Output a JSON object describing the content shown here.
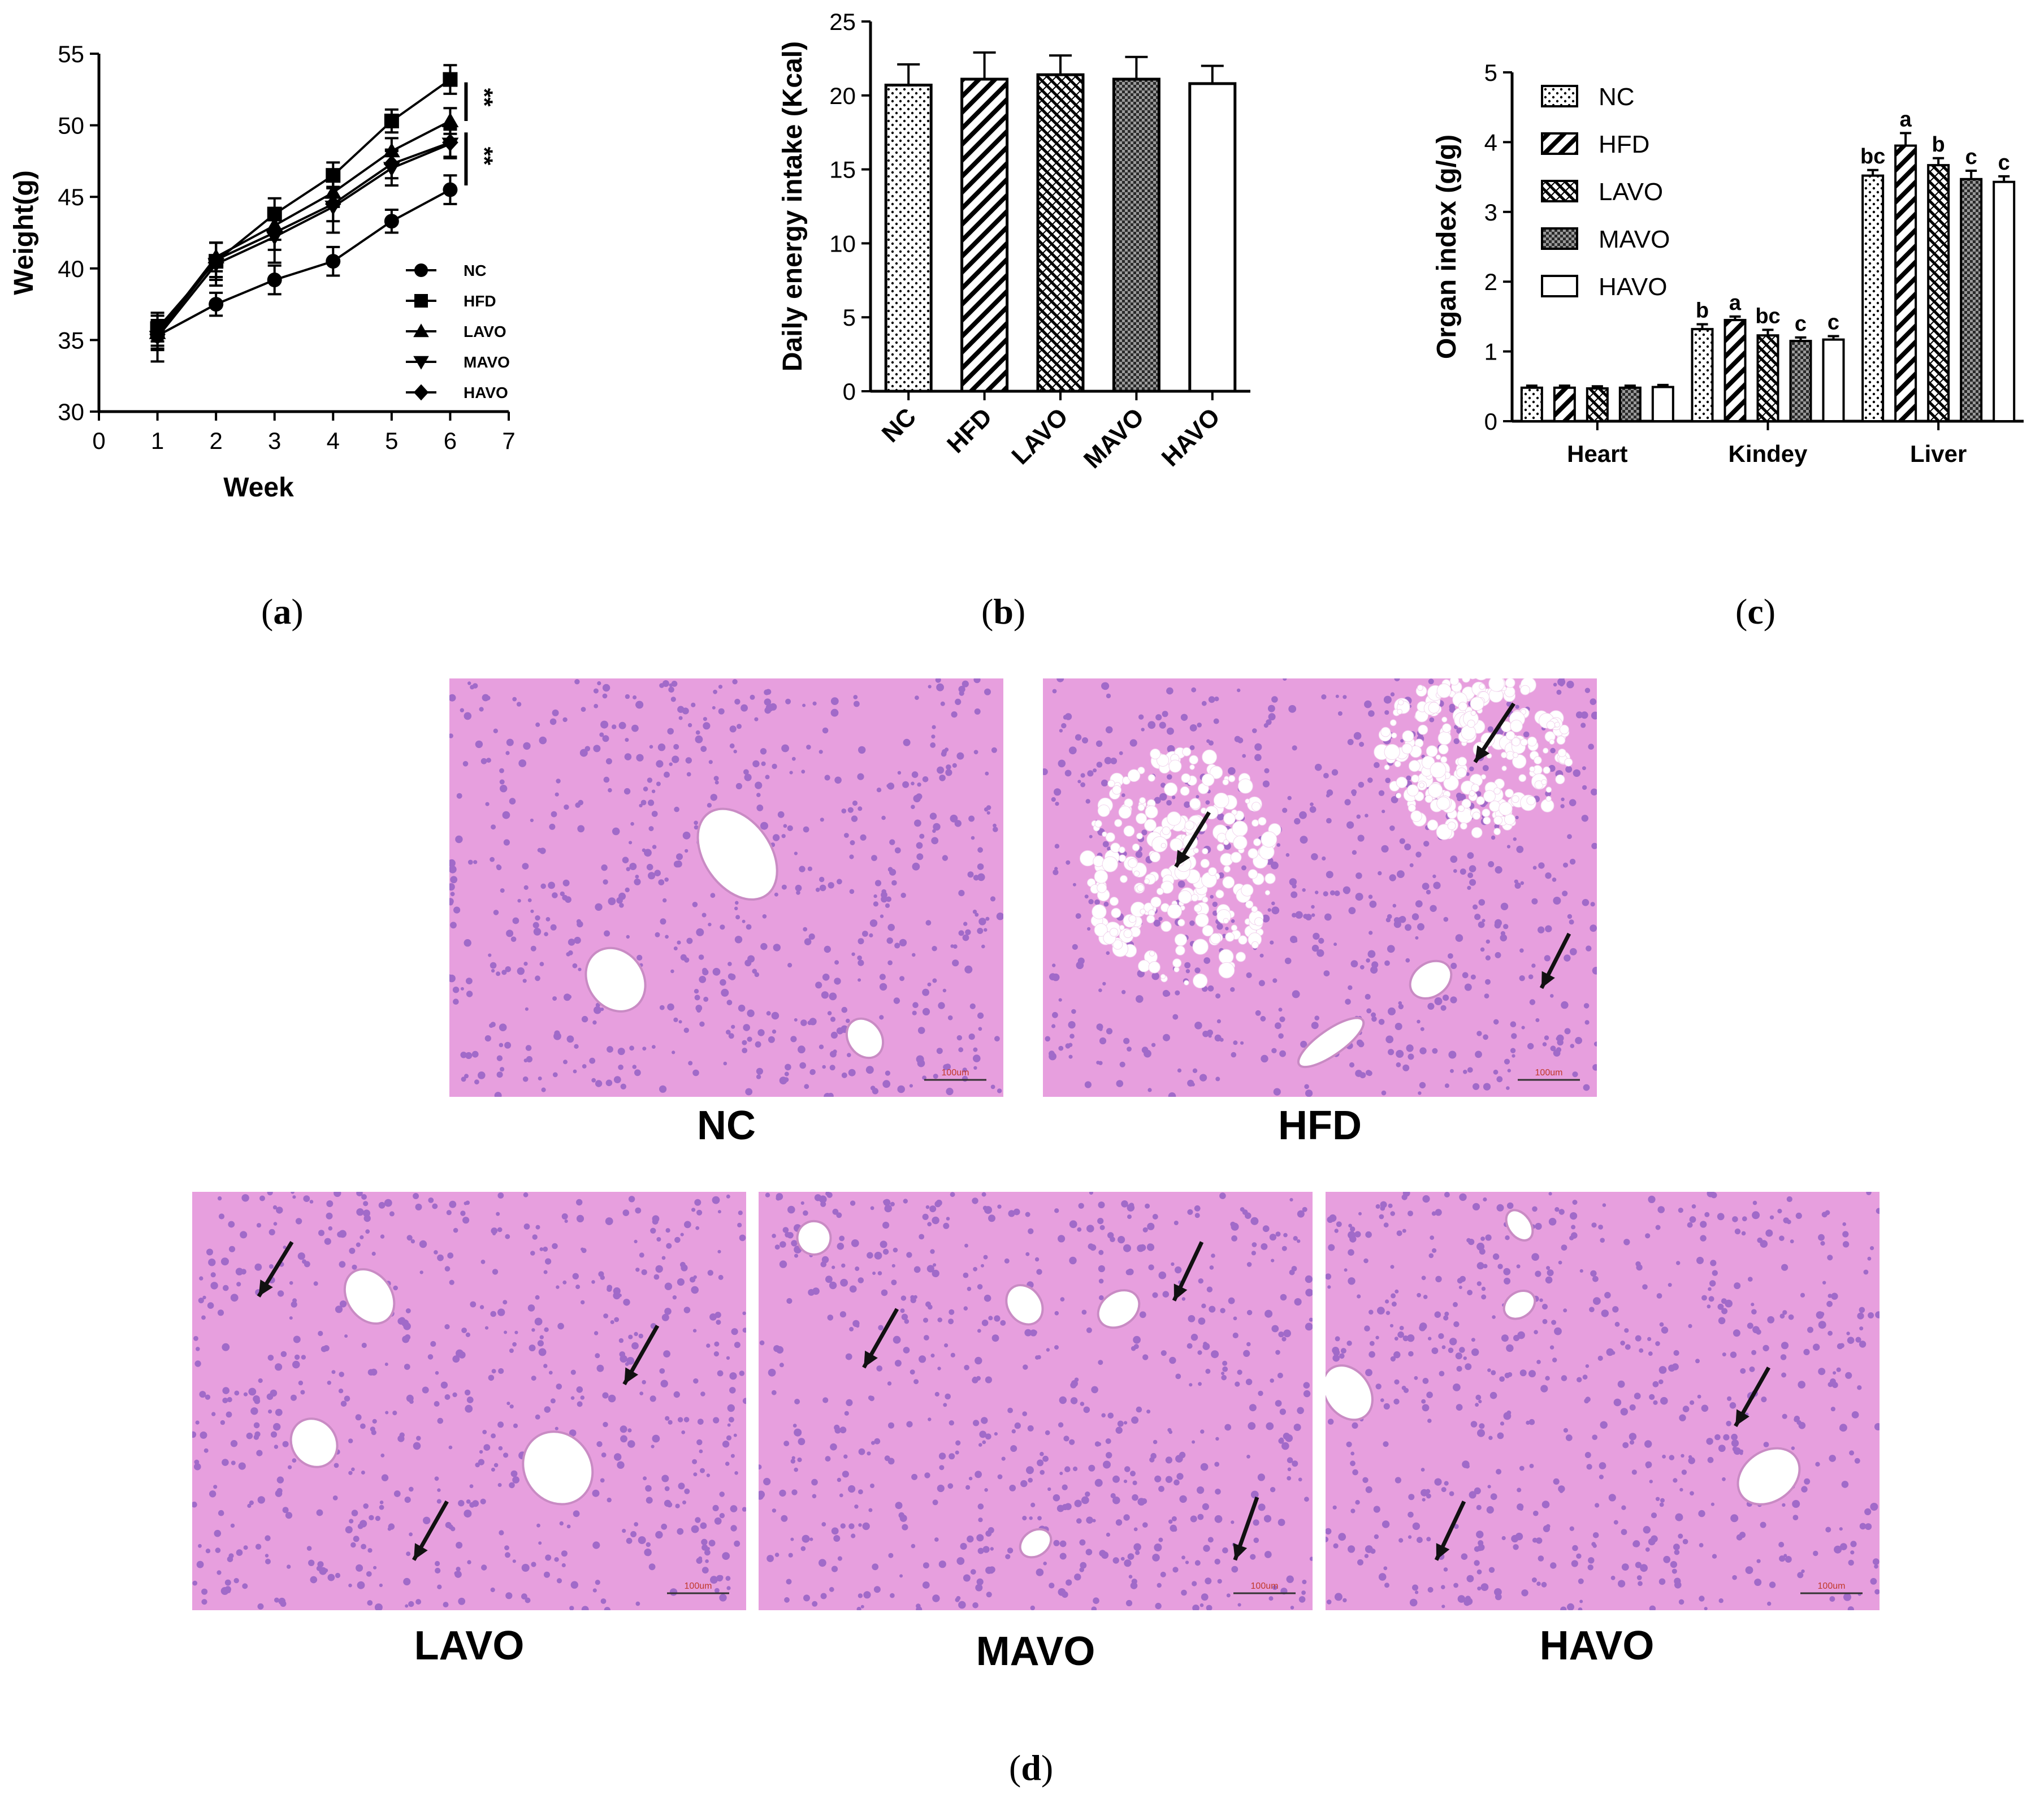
{
  "panel_captions": [
    "a",
    "b",
    "c",
    "d"
  ],
  "colors": {
    "tissue": "#e79fde",
    "nuclei": "#8a59c2",
    "vessel": "#ffffff",
    "arrow": "#111111",
    "scalebar": "#c0392b"
  },
  "histology": [
    {
      "label": "NC",
      "arrows": 0,
      "scale_bar": "100um"
    },
    {
      "label": "HFD",
      "arrows": 3,
      "scale_bar": "100um"
    },
    {
      "label": "LAVO",
      "arrows": 3,
      "scale_bar": "100um"
    },
    {
      "label": "MAVO",
      "arrows": 3,
      "scale_bar": "100um"
    },
    {
      "label": "HAVO",
      "arrows": 2,
      "scale_bar": "100um"
    }
  ],
  "chart_data": [
    {
      "type": "line",
      "panel": "a",
      "xlabel": "Week",
      "ylabel": "Weight(g)",
      "xlim": [
        0,
        7
      ],
      "ylim": [
        30,
        55
      ],
      "xticks": [
        "0",
        "1",
        "2",
        "3",
        "4",
        "5",
        "6",
        "7"
      ],
      "yticks": [
        "30",
        "35",
        "40",
        "45",
        "50",
        "55"
      ],
      "x": [
        1,
        2,
        3,
        4,
        5,
        6
      ],
      "series": [
        {
          "name": "NC",
          "marker": "circle",
          "values": [
            35.3,
            37.5,
            39.2,
            40.5,
            43.3,
            45.5
          ],
          "err": [
            1.0,
            0.8,
            1.0,
            1.0,
            0.8,
            1.0
          ]
        },
        {
          "name": "HFD",
          "marker": "square",
          "values": [
            35.8,
            40.5,
            43.8,
            46.5,
            50.3,
            53.2
          ],
          "err": [
            0.9,
            1.3,
            1.1,
            0.9,
            0.8,
            1.0
          ]
        },
        {
          "name": "LAVO",
          "marker": "triangle-up",
          "values": [
            35.5,
            40.8,
            43.0,
            45.3,
            48.2,
            50.3
          ],
          "err": [
            0.9,
            1.0,
            1.0,
            1.0,
            0.9,
            0.9
          ]
        },
        {
          "name": "MAVO",
          "marker": "triangle-down",
          "values": [
            35.2,
            40.3,
            42.2,
            44.3,
            47.0,
            48.7
          ],
          "err": [
            1.7,
            1.5,
            1.8,
            1.8,
            1.2,
            1.0
          ]
        },
        {
          "name": "HAVO",
          "marker": "diamond",
          "values": [
            35.4,
            40.6,
            42.5,
            44.5,
            47.3,
            48.8
          ],
          "err": [
            1.0,
            1.2,
            1.2,
            1.2,
            1.0,
            1.0
          ]
        }
      ],
      "annotations": [
        "**",
        "**"
      ],
      "legend": "bottom-right"
    },
    {
      "type": "bar",
      "panel": "b",
      "ylabel": "Daily energy intake (Kcal)",
      "ylim": [
        0,
        25
      ],
      "yticks": [
        "0",
        "5",
        "10",
        "15",
        "20",
        "25"
      ],
      "categories": [
        "NC",
        "HFD",
        "LAVO",
        "MAVO",
        "HAVO"
      ],
      "values": [
        20.7,
        21.1,
        21.4,
        21.1,
        20.8
      ],
      "err": [
        1.4,
        1.8,
        1.3,
        1.5,
        1.2
      ],
      "patterns": [
        "dots",
        "diag-fwd",
        "diag-dense",
        "checker",
        "none"
      ]
    },
    {
      "type": "bar",
      "panel": "c",
      "ylabel": "Organ index (g/g)",
      "ylim": [
        0,
        5
      ],
      "yticks": [
        "0",
        "1",
        "2",
        "3",
        "4",
        "5"
      ],
      "categories": [
        "Heart",
        "Kindey",
        "Liver"
      ],
      "series": [
        {
          "name": "NC",
          "pattern": "dots",
          "values": [
            0.48,
            1.32,
            3.52
          ],
          "err": [
            0.03,
            0.07,
            0.08
          ],
          "labels": [
            "",
            "b",
            "bc"
          ]
        },
        {
          "name": "HFD",
          "pattern": "diag-fwd",
          "values": [
            0.48,
            1.45,
            3.95
          ],
          "err": [
            0.03,
            0.05,
            0.18
          ],
          "labels": [
            "",
            "a",
            "a"
          ]
        },
        {
          "name": "LAVO",
          "pattern": "diag-dense",
          "values": [
            0.47,
            1.23,
            3.67
          ],
          "err": [
            0.03,
            0.08,
            0.1
          ],
          "labels": [
            "",
            "bc",
            "b"
          ]
        },
        {
          "name": "MAVO",
          "pattern": "checker",
          "values": [
            0.48,
            1.15,
            3.47
          ],
          "err": [
            0.03,
            0.05,
            0.12
          ],
          "labels": [
            "",
            "c",
            "c"
          ]
        },
        {
          "name": "HAVO",
          "pattern": "none",
          "values": [
            0.49,
            1.17,
            3.43
          ],
          "err": [
            0.03,
            0.05,
            0.08
          ],
          "labels": [
            "",
            "c",
            "c"
          ]
        }
      ],
      "legend": "top-left"
    }
  ]
}
